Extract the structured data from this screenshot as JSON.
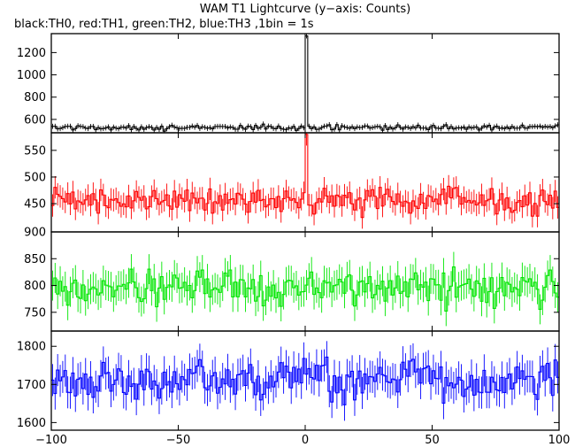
{
  "chart_data": {
    "type": "line",
    "title": "WAM T1 Lightcurve (y−axis: Counts)",
    "subtitle": "black:TH0, red:TH1, green:TH2, blue:TH3 ,1bin = 1s",
    "xlabel": "",
    "xlim": [
      -100,
      100
    ],
    "x_ticks": [
      -100,
      -50,
      0,
      50,
      100
    ],
    "x_tick_labels": [
      "−100",
      "−50",
      "0",
      "50",
      "100"
    ],
    "bin_width": 1,
    "panels": [
      {
        "series_name": "TH0",
        "color": "#000000",
        "ylim": [
          480,
          1370
        ],
        "y_ticks": [
          600,
          800,
          1000,
          1200
        ],
        "baseline": 527,
        "noise_amplitude": 22,
        "error": 23,
        "peak": {
          "x": 0,
          "value": 1350
        }
      },
      {
        "series_name": "TH1",
        "color": "#ff0000",
        "ylim": [
          397,
          583
        ],
        "y_ticks": [
          450,
          500,
          550
        ],
        "baseline": 455,
        "noise_amplitude": 24,
        "error": 21,
        "peak": {
          "x": 0,
          "value": 580
        }
      },
      {
        "series_name": "TH2",
        "color": "#00e600",
        "ylim": [
          715,
          900
        ],
        "y_ticks": [
          750,
          800,
          850,
          900
        ],
        "baseline": 795,
        "noise_amplitude": 32,
        "error": 28,
        "peak": null
      },
      {
        "series_name": "TH3",
        "color": "#0000ff",
        "ylim": [
          1580,
          1840
        ],
        "y_ticks": [
          1600,
          1700,
          1800
        ],
        "baseline": 1715,
        "noise_amplitude": 50,
        "error": 42,
        "peak": null
      }
    ]
  }
}
